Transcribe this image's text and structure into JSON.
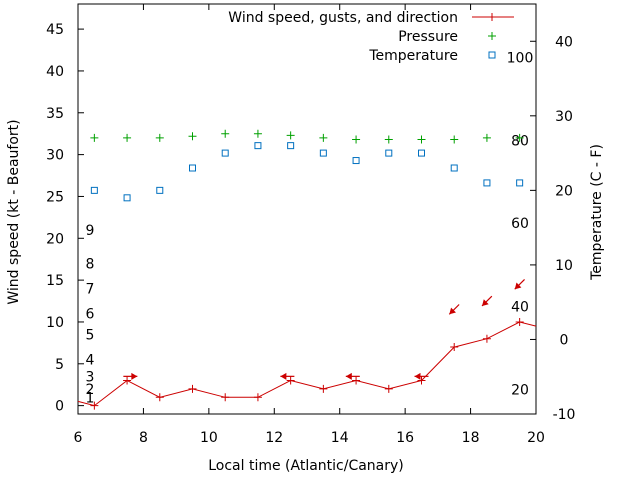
{
  "chart_data": {
    "type": "line",
    "title": "",
    "xlabel": "Local time (Atlantic/Canary)",
    "ylabel_left": "Wind speed (kt - Beaufort)",
    "ylabel_right": "Temperature (C - F)",
    "xlim": [
      6,
      20
    ],
    "ylim_left": [
      -1,
      48
    ],
    "ylim_right": [
      -10,
      45
    ],
    "x_ticks": [
      "6",
      "8",
      "10",
      "12",
      "14",
      "16",
      "18",
      "20"
    ],
    "y_ticks_left": [
      "0",
      "5",
      "10",
      "15",
      "20",
      "25",
      "30",
      "35",
      "40",
      "45"
    ],
    "y_ticks_right": [
      "-10",
      "0",
      "10",
      "20",
      "30",
      "40"
    ],
    "beaufort_labels": [
      {
        "text": "1",
        "kt": 1
      },
      {
        "text": "2",
        "kt": 2
      },
      {
        "text": "3",
        "kt": 3.5
      },
      {
        "text": "4",
        "kt": 5.5
      },
      {
        "text": "5",
        "kt": 8.5
      },
      {
        "text": "6",
        "kt": 11
      },
      {
        "text": "7",
        "kt": 14
      },
      {
        "text": "8",
        "kt": 17
      },
      {
        "text": "9",
        "kt": 21
      }
    ],
    "fahrenheit_labels": [
      {
        "text": "20",
        "c": -6.7
      },
      {
        "text": "40",
        "c": 4.4
      },
      {
        "text": "60",
        "c": 15.6
      },
      {
        "text": "80",
        "c": 26.7
      },
      {
        "text": "100",
        "c": 37.8
      }
    ],
    "legend_position": "top-right",
    "series": [
      {
        "name": "Wind speed, gusts, and direction",
        "color": "#cc0000",
        "style": "line-plus",
        "x": [
          6.0,
          6.5,
          7.5,
          8.5,
          9.5,
          10.5,
          11.5,
          12.5,
          13.5,
          14.5,
          15.5,
          16.5,
          17.5,
          18.5,
          19.5,
          20.0
        ],
        "values": [
          0.5,
          0,
          3,
          1,
          2,
          1,
          1,
          3,
          2,
          3,
          2,
          3,
          7,
          8,
          10,
          9.5
        ]
      },
      {
        "name": "Pressure",
        "color": "#00a000",
        "style": "plus",
        "x": [
          6.5,
          7.5,
          8.5,
          9.5,
          10.5,
          11.5,
          12.5,
          13.5,
          14.5,
          15.5,
          16.5,
          17.5,
          18.5,
          19.5
        ],
        "values_kt_axis": [
          32,
          32,
          32,
          32.2,
          32.5,
          32.5,
          32.3,
          32,
          31.8,
          31.8,
          31.8,
          31.8,
          32,
          32
        ]
      },
      {
        "name": "Temperature",
        "color": "#0070c0",
        "style": "square",
        "x": [
          6.5,
          7.5,
          8.5,
          9.5,
          10.5,
          11.5,
          12.5,
          13.5,
          14.5,
          15.5,
          16.5,
          17.5,
          18.5,
          19.5
        ],
        "values": [
          20,
          19,
          20,
          23,
          25,
          26,
          26,
          25,
          24,
          25,
          25,
          23,
          21,
          21
        ]
      }
    ],
    "wind_arrows": [
      {
        "x": 7.6,
        "dir": "E"
      },
      {
        "x": 12.4,
        "dir": "W"
      },
      {
        "x": 14.4,
        "dir": "W"
      },
      {
        "x": 16.5,
        "dir": "W"
      },
      {
        "x": 17.5,
        "dir": "SW"
      },
      {
        "x": 18.5,
        "dir": "SW"
      },
      {
        "x": 19.5,
        "dir": "SW"
      }
    ]
  }
}
